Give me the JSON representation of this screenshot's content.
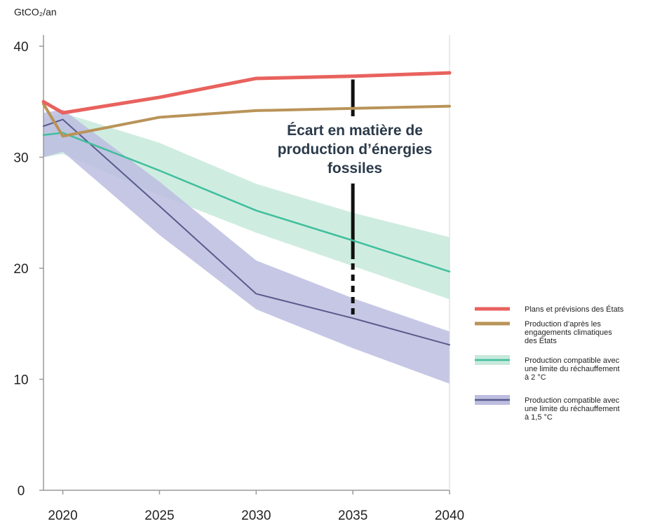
{
  "chart_data": {
    "type": "line",
    "title": "",
    "xlabel": "",
    "ylabel": "GtCO₂/an",
    "x_ticks": [
      2020,
      2025,
      2030,
      2035,
      2040
    ],
    "y_ticks": [
      0,
      10,
      20,
      30,
      40
    ],
    "xlim": [
      2019,
      2040
    ],
    "ylim": [
      0,
      40
    ],
    "grid": false,
    "legend_position": "right",
    "annotation": {
      "lines": [
        "Écart en matière de",
        "production d’énergies",
        "fossiles"
      ],
      "x": 2035,
      "y_top": 37.0,
      "y_bottom": 15.7
    },
    "series": [
      {
        "name": "Plans et prévisions des États",
        "color": "#e8625e",
        "x": [
          2019,
          2020,
          2025,
          2030,
          2035,
          2040
        ],
        "y": [
          35.0,
          34.0,
          35.4,
          37.1,
          37.3,
          37.6
        ]
      },
      {
        "name": "Production d’après les engagements climatiques des États",
        "legend_lines": [
          "Production d’après les",
          "engagements climatiques",
          "des États"
        ],
        "color": "#b99358",
        "x": [
          2019,
          2020,
          2025,
          2030,
          2035,
          2040
        ],
        "y": [
          34.8,
          31.9,
          33.6,
          34.2,
          34.4,
          34.6
        ]
      },
      {
        "name": "Production compatible avec une limite du réchauffement à 2 °C",
        "legend_lines": [
          "Production compatible avec",
          "une limite du réchauffement",
          "à 2 °C"
        ],
        "color": "#3fbf9c",
        "band_color": "#c7e9dc",
        "x": [
          2019,
          2020,
          2025,
          2030,
          2035,
          2040
        ],
        "y": [
          32.0,
          32.2,
          28.8,
          25.2,
          22.5,
          19.7
        ],
        "lower": [
          30.0,
          30.3,
          26.6,
          23.2,
          20.2,
          17.2
        ],
        "upper": [
          33.5,
          34.0,
          31.3,
          27.6,
          25.0,
          22.8
        ]
      },
      {
        "name": "Production compatible avec une limite du réchauffement à 1,5 °C",
        "legend_lines": [
          "Production compatible avec",
          "une limite du réchauffement",
          "à 1,5 °C"
        ],
        "color": "#5a5a8c",
        "band_color": "#bcbde0",
        "x": [
          2019,
          2020,
          2025,
          2030,
          2035,
          2040
        ],
        "y": [
          32.8,
          33.4,
          25.6,
          17.7,
          15.5,
          13.1
        ],
        "lower": [
          30.0,
          30.5,
          23.0,
          16.3,
          12.8,
          9.6
        ],
        "upper": [
          34.0,
          34.3,
          27.8,
          20.7,
          17.3,
          14.3
        ]
      }
    ]
  }
}
